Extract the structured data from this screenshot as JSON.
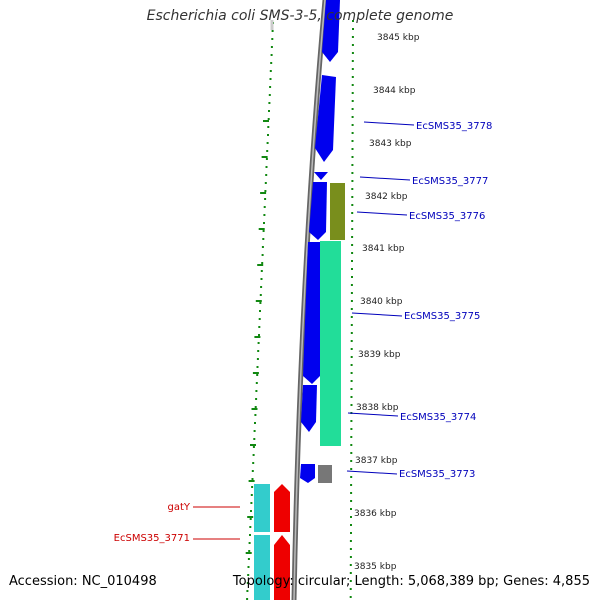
{
  "title": "Escherichia coli SMS-3-5, complete genome",
  "footer": {
    "accession": "Accession: NC_010498",
    "summary": "Topology: circular; Length: 5,068,389 bp; Genes: 4,855"
  },
  "colors": {
    "forward_cds": "#0000ee",
    "reverse_cds": "#ee0000",
    "olive_feature": "#6b7f18",
    "green_feature": "#22dd99",
    "cyan_feature": "#33cccc",
    "gray_feature": "#777777",
    "backbone": "#777777",
    "gc_dots": "#118811",
    "forward_label": "#0000bb",
    "reverse_label": "#cc0000"
  },
  "ticks": [
    "3845 kbp",
    "3844 kbp",
    "3843 kbp",
    "3842 kbp",
    "3841 kbp",
    "3840 kbp",
    "3839 kbp",
    "3838 kbp",
    "3837 kbp",
    "3836 kbp",
    "3835 kbp"
  ],
  "gene_labels_right": [
    "EcSMS35_3778",
    "EcSMS35_3777",
    "EcSMS35_3776",
    "EcSMS35_3775",
    "EcSMS35_3774",
    "EcSMS35_3773"
  ],
  "gene_labels_left": [
    "gatY",
    "EcSMS35_3771"
  ]
}
